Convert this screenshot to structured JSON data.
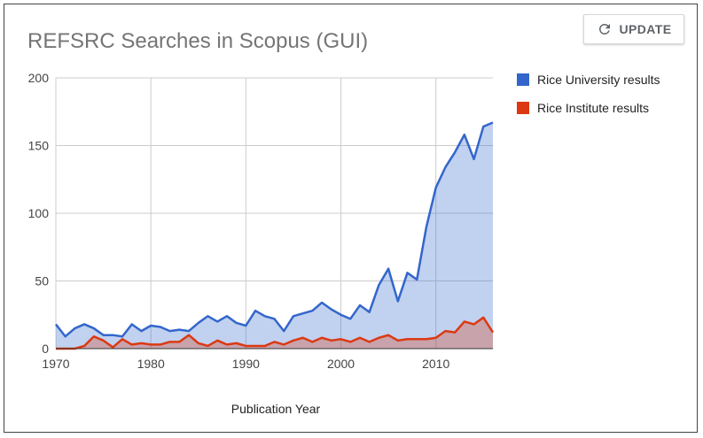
{
  "title": "REFSRC Searches in Scopus (GUI)",
  "update_button": {
    "label": "UPDATE",
    "icon": "refresh-icon"
  },
  "colors": {
    "series1": "#3366cc",
    "series2": "#dc3912",
    "grid": "#cccccc",
    "axis": "#333333"
  },
  "chart_data": {
    "type": "area",
    "xlabel": "Publication Year",
    "ylabel": "",
    "xlim": [
      1970,
      2016
    ],
    "ylim": [
      0,
      200
    ],
    "x_ticks": [
      1970,
      1980,
      1990,
      2000,
      2010
    ],
    "y_ticks": [
      0,
      50,
      100,
      150,
      200
    ],
    "grid": true,
    "legend_position": "right",
    "x": [
      1970,
      1971,
      1972,
      1973,
      1974,
      1975,
      1976,
      1977,
      1978,
      1979,
      1980,
      1981,
      1982,
      1983,
      1984,
      1985,
      1986,
      1987,
      1988,
      1989,
      1990,
      1991,
      1992,
      1993,
      1994,
      1995,
      1996,
      1997,
      1998,
      1999,
      2000,
      2001,
      2002,
      2003,
      2004,
      2005,
      2006,
      2007,
      2008,
      2009,
      2010,
      2011,
      2012,
      2013,
      2014,
      2015,
      2016
    ],
    "series": [
      {
        "name": "Rice University results",
        "color": "#3366cc",
        "values": [
          18,
          9,
          15,
          18,
          15,
          10,
          10,
          9,
          18,
          13,
          17,
          16,
          13,
          14,
          13,
          19,
          24,
          20,
          24,
          19,
          17,
          28,
          24,
          22,
          13,
          24,
          26,
          28,
          34,
          29,
          25,
          22,
          32,
          27,
          47,
          59,
          35,
          56,
          51,
          90,
          119,
          134,
          145,
          158,
          140,
          164,
          167
        ]
      },
      {
        "name": "Rice Institute results",
        "color": "#dc3912",
        "values": [
          0,
          0,
          0,
          2,
          9,
          6,
          1,
          7,
          3,
          4,
          3,
          3,
          5,
          5,
          10,
          4,
          2,
          6,
          3,
          4,
          2,
          2,
          2,
          5,
          3,
          6,
          8,
          5,
          8,
          6,
          7,
          5,
          8,
          5,
          8,
          10,
          6,
          7,
          7,
          7,
          8,
          13,
          12,
          20,
          18,
          23,
          12
        ]
      }
    ]
  }
}
